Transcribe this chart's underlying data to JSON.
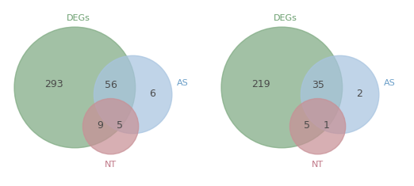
{
  "diagrams": [
    {
      "degs_only": "293",
      "degs_as": "56",
      "as_only": "6",
      "nt_degs": "9",
      "nt_as": "5"
    },
    {
      "degs_only": "219",
      "degs_as": "35",
      "as_only": "2",
      "nt_degs": "5",
      "nt_as": "1"
    }
  ],
  "degs_color": "#7faa82",
  "as_color": "#a8c4e0",
  "nt_color": "#c89096",
  "degs_label_color": "#6a9e6e",
  "as_label_color": "#6a9ec8",
  "nt_label_color": "#c07888",
  "number_color": "#4a4a4a",
  "background_color": "#ffffff",
  "alpha": 0.72,
  "label_fontsize": 8,
  "number_fontsize": 9
}
